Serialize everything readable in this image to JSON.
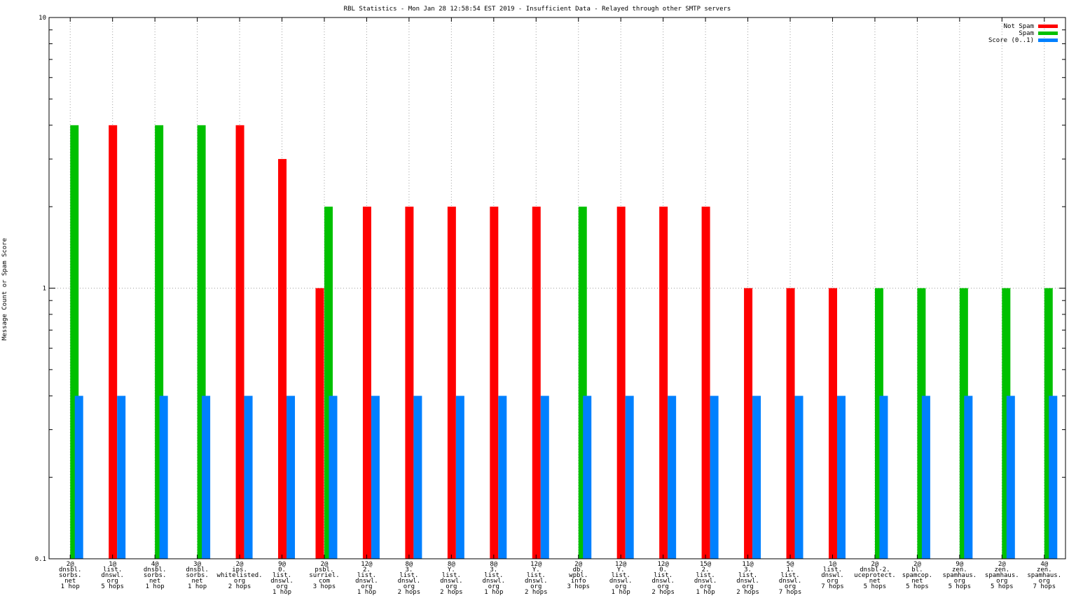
{
  "chart_data": {
    "type": "bar",
    "title": "RBL Statistics - Mon Jan 28 12:58:54 EST 2019 - Insufficient Data - Relayed through other SMTP servers",
    "xlabel": "",
    "ylabel": "Message Count or Spam Score",
    "yscale": "log",
    "ylim": [
      0.1,
      10
    ],
    "yticks": [
      "0.1",
      "1",
      "10"
    ],
    "grid": true,
    "legend_position": "top-right",
    "colors": {
      "not_spam": "#ff0000",
      "spam": "#00c000",
      "score": "#0080ff"
    },
    "categories": [
      [
        "2@",
        "dnsbl.",
        "sorbs.",
        "net",
        "1 hop"
      ],
      [
        "1@",
        "list.",
        "dnswl.",
        "org",
        "5 hops"
      ],
      [
        "4@",
        "dnsbl.",
        "sorbs.",
        "net",
        "1 hop"
      ],
      [
        "3@",
        "dnsbl.",
        "sorbs.",
        "net",
        "1 hop"
      ],
      [
        "2@",
        "ips.",
        "whitelisted.",
        "org",
        "2 hops"
      ],
      [
        "9@",
        "0.",
        "list.",
        "dnswl.",
        "org",
        "1 hop"
      ],
      [
        "2@",
        "psbl.",
        "surriel.",
        "com",
        "3 hops"
      ],
      [
        "12@",
        "2.",
        "list.",
        "dnswl.",
        "org",
        "1 hop"
      ],
      [
        "8@",
        "3.",
        "list.",
        "dnswl.",
        "org",
        "2 hops"
      ],
      [
        "8@",
        "Y.",
        "list.",
        "dnswl.",
        "org",
        "2 hops"
      ],
      [
        "8@",
        "3.",
        "list.",
        "dnswl.",
        "org",
        "1 hop"
      ],
      [
        "12@",
        "Y.",
        "list.",
        "dnswl.",
        "org",
        "2 hops"
      ],
      [
        "2@",
        "db.",
        "wpbl.",
        "info",
        "3 hops"
      ],
      [
        "12@",
        "Y.",
        "list.",
        "dnswl.",
        "org",
        "1 hop"
      ],
      [
        "12@",
        "0.",
        "list.",
        "dnswl.",
        "org",
        "2 hops"
      ],
      [
        "15@",
        "2.",
        "list.",
        "dnswl.",
        "org",
        "1 hop"
      ],
      [
        "11@",
        "3.",
        "list.",
        "dnswl.",
        "org",
        "2 hops"
      ],
      [
        "5@",
        "1.",
        "list.",
        "dnswl.",
        "org",
        "7 hops"
      ],
      [
        "1@",
        "list.",
        "dnswl.",
        "org",
        "7 hops"
      ],
      [
        "2@",
        "dnsbl-2.",
        "uceprotect.",
        "net",
        "5 hops"
      ],
      [
        "2@",
        "bl.",
        "spamcop.",
        "net",
        "5 hops"
      ],
      [
        "9@",
        "zen.",
        "spamhaus.",
        "org",
        "5 hops"
      ],
      [
        "2@",
        "zen.",
        "spamhaus.",
        "org",
        "5 hops"
      ],
      [
        "4@",
        "zen.",
        "spamhaus.",
        "org",
        "7 hops"
      ]
    ],
    "series": [
      {
        "name": "Not Spam",
        "values": [
          0,
          4,
          0,
          0,
          4,
          3,
          1,
          2,
          2,
          2,
          2,
          2,
          0,
          2,
          2,
          2,
          1,
          1,
          1,
          0,
          0,
          0,
          0,
          0
        ]
      },
      {
        "name": "Spam",
        "values": [
          4,
          0,
          4,
          4,
          0,
          0,
          2,
          0,
          0,
          0,
          0,
          0,
          2,
          0,
          0,
          0,
          0,
          0,
          0,
          1,
          1,
          1,
          1,
          1
        ]
      },
      {
        "name": "Score (0..1)",
        "values": [
          0.4,
          0.4,
          0.4,
          0.4,
          0.4,
          0.4,
          0.4,
          0.4,
          0.4,
          0.4,
          0.4,
          0.4,
          0.4,
          0.4,
          0.4,
          0.4,
          0.4,
          0.4,
          0.4,
          0.4,
          0.4,
          0.4,
          0.4,
          0.4
        ]
      }
    ]
  }
}
